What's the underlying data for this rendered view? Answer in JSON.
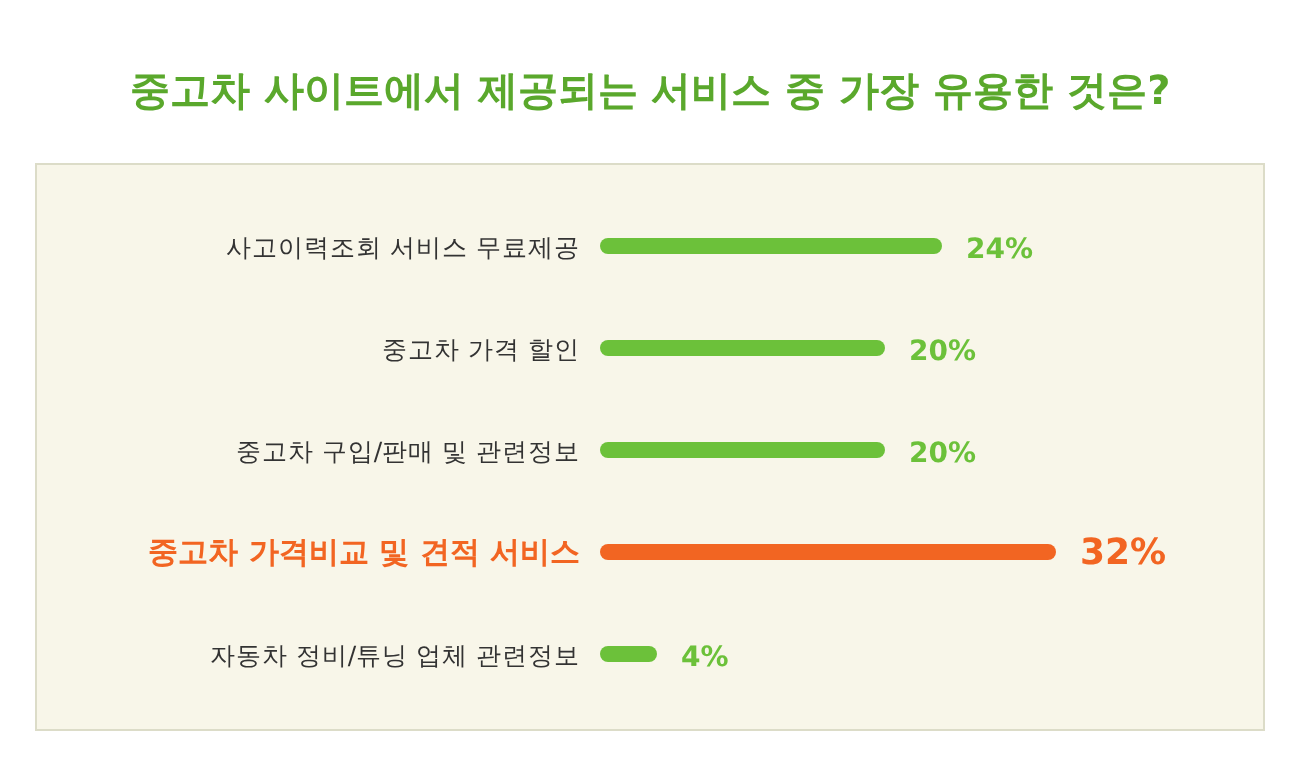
{
  "chart_data": {
    "type": "bar",
    "orientation": "horizontal",
    "title": "중고차 사이트에서 제공되는 서비스 중 가장 유용한 것은?",
    "categories": [
      "사고이력조회 서비스 무료제공",
      "중고차 가격 할인",
      "중고차 구입/판매 및 관련정보",
      "중고차 가격비교 및 견적 서비스",
      "자동차 정비/튜닝 업체 관련정보"
    ],
    "values": [
      24,
      20,
      20,
      32,
      4
    ],
    "colors": [
      "#6cc13a",
      "#6cc13a",
      "#6cc13a",
      "#f26522",
      "#6cc13a"
    ],
    "value_labels": [
      "24%",
      "20%",
      "20%",
      "32%",
      "4%"
    ]
  }
}
